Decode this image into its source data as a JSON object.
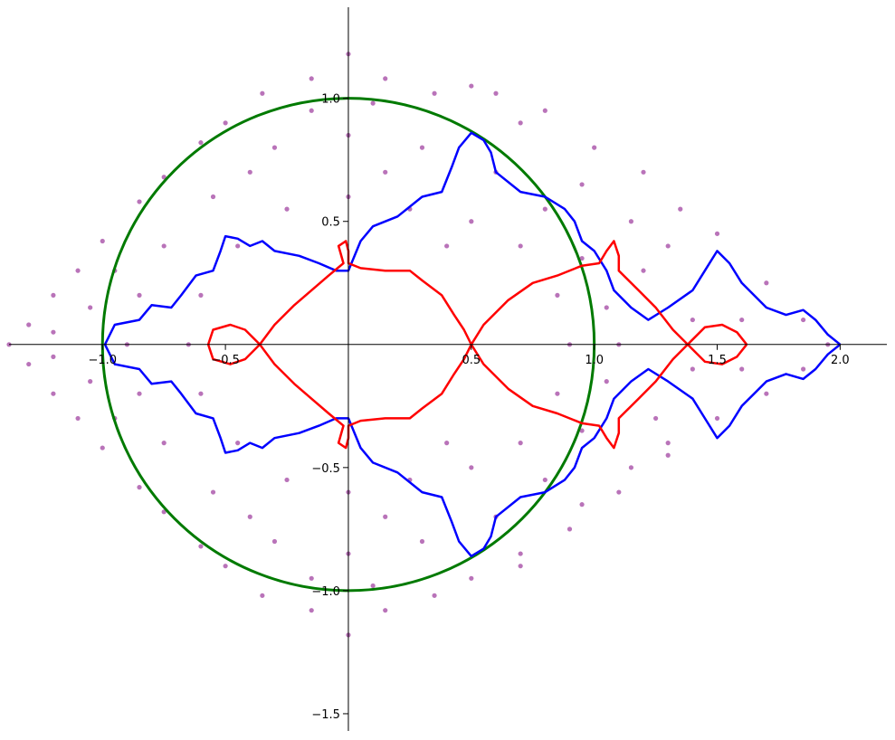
{
  "chart_data": {
    "type": "scatter",
    "xlim": [
      -1.38,
      2.19
    ],
    "ylim": [
      -1.57,
      1.37
    ],
    "xticks": [
      {
        "value": -1,
        "label": "−1.0"
      },
      {
        "value": -0.5,
        "label": "−0.5"
      },
      0.5,
      {
        "value": 1,
        "label": "1.0"
      },
      1.5,
      {
        "value": 2,
        "label": "2.0"
      }
    ],
    "yticks": [
      {
        "value": -1.5,
        "label": "−1.5"
      },
      {
        "value": -1,
        "label": "−1.0"
      },
      {
        "value": -0.5,
        "label": "−0.5"
      },
      0.5,
      {
        "value": 1,
        "label": "1.0"
      }
    ],
    "series": [
      {
        "type": "scatter",
        "color": "#800080",
        "x": [
          0,
          0.15,
          -0.15,
          0.35,
          -0.35,
          -0.6,
          -0.75,
          -0.85,
          -1.0,
          -1.1,
          -1.2,
          -1.3,
          -1.38,
          -1.3,
          -1.2,
          -1.1,
          -1.0,
          -0.85,
          -0.75,
          -0.6,
          -0.35,
          -0.15,
          0,
          0.15,
          0.35,
          0.5,
          0.7,
          0.9,
          1.1,
          1.3,
          1.5,
          1.7,
          1.85,
          1.95,
          1.85,
          1.7,
          1.5,
          1.35,
          1.2,
          1.0,
          0.8,
          0.6,
          0.5,
          0,
          0.3,
          -0.3,
          -0.55,
          -0.75,
          -0.85,
          -0.9,
          -0.85,
          -0.75,
          -0.55,
          -0.3,
          0,
          0.3,
          0.6,
          0.8,
          0.95,
          1.05,
          1.1,
          1.05,
          0.95,
          0.8,
          0.6,
          0,
          0.25,
          -0.25,
          -0.45,
          -0.6,
          -0.65,
          -0.6,
          -0.45,
          -0.25,
          0,
          0.25,
          0.5,
          0.7,
          0.85,
          0.9,
          0.85,
          0.7,
          0.5,
          1.2,
          1.25,
          1.4,
          1.4,
          1.6,
          1.6,
          1.3,
          1.3,
          1.15,
          1.15,
          0.95,
          0.95,
          0.7,
          0.7,
          -1.2,
          -1.2,
          -1.05,
          -1.05,
          -0.95,
          -0.95,
          -0.5,
          -0.5,
          -0.15,
          -0.15,
          0.1,
          0.1,
          0.15,
          0.15,
          -0.4,
          -0.4,
          0.4,
          0.4
        ],
        "y": [
          1.18,
          1.08,
          1.08,
          1.02,
          1.02,
          0.82,
          0.68,
          0.58,
          0.42,
          0.3,
          0.2,
          0.08,
          0,
          -0.08,
          -0.2,
          -0.3,
          -0.42,
          -0.58,
          -0.68,
          -0.82,
          -1.02,
          -1.08,
          -1.18,
          -1.08,
          -1.02,
          -0.95,
          -0.85,
          -0.75,
          -0.6,
          -0.45,
          -0.3,
          -0.2,
          -0.1,
          0,
          0.1,
          0.25,
          0.45,
          0.55,
          0.7,
          0.8,
          0.95,
          1.02,
          1.05,
          0.85,
          0.8,
          0.8,
          0.6,
          0.4,
          0.2,
          0,
          -0.2,
          -0.4,
          -0.6,
          -0.8,
          -0.85,
          -0.8,
          -0.7,
          -0.55,
          -0.35,
          -0.15,
          0,
          0.15,
          0.35,
          0.55,
          0.7,
          0.6,
          0.55,
          0.55,
          0.4,
          0.2,
          0,
          -0.2,
          -0.4,
          -0.55,
          -0.6,
          -0.55,
          -0.5,
          -0.4,
          -0.2,
          0,
          0.2,
          0.4,
          0.5,
          0.3,
          -0.3,
          0.1,
          -0.1,
          0.1,
          -0.1,
          0.4,
          -0.4,
          0.5,
          -0.5,
          0.65,
          -0.65,
          0.9,
          -0.9,
          0.05,
          -0.05,
          0.15,
          -0.15,
          0.3,
          -0.3,
          0.9,
          -0.9,
          0.95,
          -0.95,
          0.98,
          -0.98,
          0.7,
          -0.7,
          0.7,
          -0.7,
          0.4,
          -0.4
        ]
      },
      {
        "type": "circle",
        "color": "#007a00",
        "center_x": 0,
        "center_y": 0,
        "radius": 1
      },
      {
        "type": "line",
        "color": "#0000ff",
        "x": [
          -0.99,
          -0.95,
          -0.85,
          -0.8,
          -0.72,
          -0.68,
          -0.62,
          -0.55,
          -0.52,
          -0.5,
          -0.45,
          -0.4,
          -0.35,
          -0.3,
          -0.2,
          -0.12,
          -0.05,
          0.0,
          0.05,
          0.1,
          0.2,
          0.3,
          0.38,
          0.42,
          0.45,
          0.5,
          0.55,
          0.58,
          0.6,
          0.7,
          0.8,
          0.88,
          0.92,
          0.95,
          1.0,
          1.05,
          1.08,
          1.15,
          1.22,
          1.3,
          1.4,
          1.45,
          1.5,
          1.55,
          1.6,
          1.65,
          1.7,
          1.78,
          1.85,
          1.9,
          1.95,
          2.0
        ],
        "y": [
          0,
          0.08,
          0.1,
          0.16,
          0.15,
          0.2,
          0.28,
          0.3,
          0.38,
          0.44,
          0.43,
          0.4,
          0.42,
          0.38,
          0.36,
          0.33,
          0.3,
          0.3,
          0.42,
          0.48,
          0.52,
          0.6,
          0.62,
          0.72,
          0.8,
          0.86,
          0.83,
          0.78,
          0.7,
          0.62,
          0.6,
          0.55,
          0.5,
          0.42,
          0.38,
          0.3,
          0.22,
          0.15,
          0.1,
          0.15,
          0.22,
          0.3,
          0.38,
          0.33,
          0.25,
          0.2,
          0.15,
          0.12,
          0.14,
          0.1,
          0.04,
          0
        ]
      },
      {
        "type": "line",
        "color": "#0000ff",
        "x": [
          -0.99,
          -0.95,
          -0.85,
          -0.8,
          -0.72,
          -0.68,
          -0.62,
          -0.55,
          -0.52,
          -0.5,
          -0.45,
          -0.4,
          -0.35,
          -0.3,
          -0.2,
          -0.12,
          -0.05,
          0.0,
          0.05,
          0.1,
          0.2,
          0.3,
          0.38,
          0.42,
          0.45,
          0.5,
          0.55,
          0.58,
          0.6,
          0.7,
          0.8,
          0.88,
          0.92,
          0.95,
          1.0,
          1.05,
          1.08,
          1.15,
          1.22,
          1.3,
          1.4,
          1.45,
          1.5,
          1.55,
          1.6,
          1.65,
          1.7,
          1.78,
          1.85,
          1.9,
          1.95,
          2.0
        ],
        "y": [
          0,
          -0.08,
          -0.1,
          -0.16,
          -0.15,
          -0.2,
          -0.28,
          -0.3,
          -0.38,
          -0.44,
          -0.43,
          -0.4,
          -0.42,
          -0.38,
          -0.36,
          -0.33,
          -0.3,
          -0.3,
          -0.42,
          -0.48,
          -0.52,
          -0.6,
          -0.62,
          -0.72,
          -0.8,
          -0.86,
          -0.83,
          -0.78,
          -0.7,
          -0.62,
          -0.6,
          -0.55,
          -0.5,
          -0.42,
          -0.38,
          -0.3,
          -0.22,
          -0.15,
          -0.1,
          -0.15,
          -0.22,
          -0.3,
          -0.38,
          -0.33,
          -0.25,
          -0.2,
          -0.15,
          -0.12,
          -0.14,
          -0.1,
          -0.04,
          0
        ]
      },
      {
        "type": "line",
        "color": "#ff0000",
        "x": [
          -0.57,
          -0.55,
          -0.48,
          -0.42,
          -0.36,
          -0.3,
          -0.22,
          -0.15,
          -0.08,
          -0.02,
          -0.04,
          -0.01,
          0.0,
          0.0,
          0.05,
          0.15,
          0.22,
          0.25,
          0.3,
          0.38,
          0.43,
          0.47,
          0.5,
          0.55,
          0.65,
          0.75,
          0.85,
          0.95,
          1.02,
          1.05,
          1.08,
          1.1,
          1.1,
          1.18,
          1.25,
          1.32,
          1.38,
          1.45,
          1.52,
          1.58,
          1.62
        ],
        "y": [
          0,
          0.06,
          0.08,
          0.06,
          0,
          0.08,
          0.16,
          0.22,
          0.28,
          0.33,
          0.4,
          0.42,
          0.38,
          0.33,
          0.31,
          0.3,
          0.3,
          0.3,
          0.26,
          0.2,
          0.12,
          0.06,
          0,
          0.08,
          0.18,
          0.25,
          0.28,
          0.32,
          0.33,
          0.38,
          0.42,
          0.36,
          0.3,
          0.22,
          0.15,
          0.06,
          0,
          0.07,
          0.08,
          0.05,
          0
        ]
      },
      {
        "type": "line",
        "color": "#ff0000",
        "x": [
          -0.57,
          -0.55,
          -0.48,
          -0.42,
          -0.36,
          -0.3,
          -0.22,
          -0.15,
          -0.08,
          -0.02,
          -0.04,
          -0.01,
          0.0,
          0.0,
          0.05,
          0.15,
          0.22,
          0.25,
          0.3,
          0.38,
          0.43,
          0.47,
          0.5,
          0.55,
          0.65,
          0.75,
          0.85,
          0.95,
          1.02,
          1.05,
          1.08,
          1.1,
          1.1,
          1.18,
          1.25,
          1.32,
          1.38,
          1.45,
          1.52,
          1.58,
          1.62
        ],
        "y": [
          0,
          -0.06,
          -0.08,
          -0.06,
          0,
          -0.08,
          -0.16,
          -0.22,
          -0.28,
          -0.33,
          -0.4,
          -0.42,
          -0.38,
          -0.33,
          -0.31,
          -0.3,
          -0.3,
          -0.3,
          -0.26,
          -0.2,
          -0.12,
          -0.06,
          0,
          -0.08,
          -0.18,
          -0.25,
          -0.28,
          -0.32,
          -0.33,
          -0.38,
          -0.42,
          -0.36,
          -0.3,
          -0.22,
          -0.15,
          -0.06,
          0,
          -0.07,
          -0.08,
          -0.05,
          0
        ]
      }
    ]
  }
}
